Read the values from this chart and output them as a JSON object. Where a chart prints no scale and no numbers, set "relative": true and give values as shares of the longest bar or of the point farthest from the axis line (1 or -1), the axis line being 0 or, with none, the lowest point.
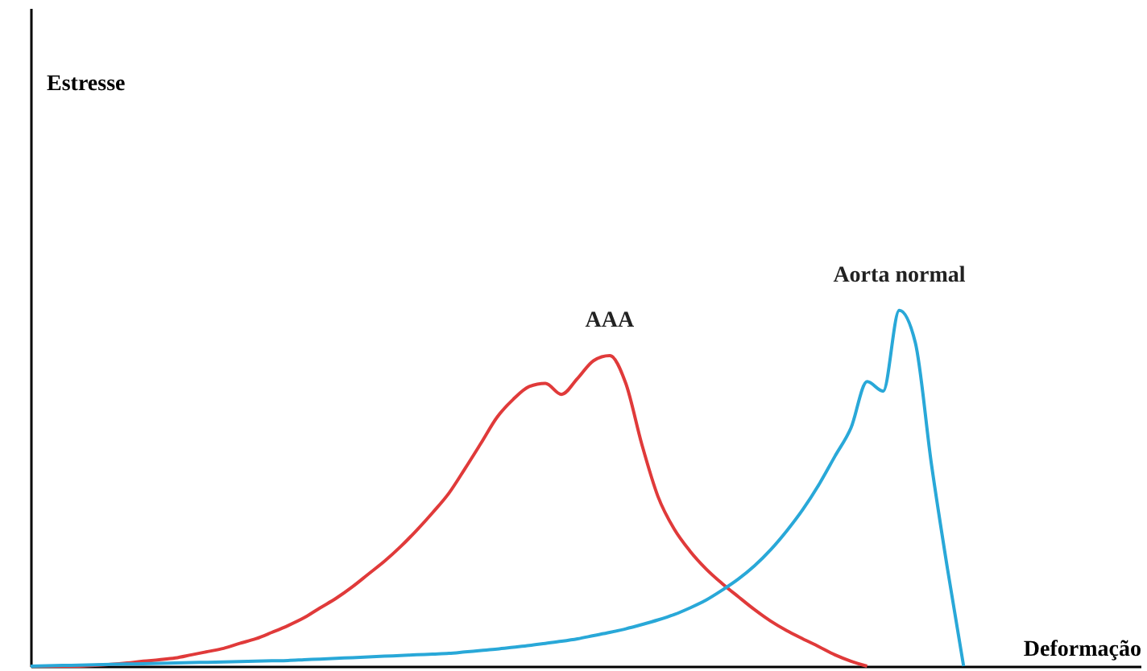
{
  "chart_data": {
    "type": "line",
    "xlabel": "Deformação",
    "annotations": [
      "Estresse"
    ],
    "relative": true,
    "tick_labels": false,
    "grid": false,
    "marker": "none",
    "categories": [
      null,
      null,
      null,
      null,
      null,
      null,
      null,
      null,
      null,
      null,
      null,
      null,
      null,
      null,
      null,
      null,
      null,
      null,
      null,
      null,
      null,
      null,
      null,
      null,
      null,
      null,
      null,
      null,
      null,
      null,
      null,
      null,
      null,
      null,
      null,
      null,
      null,
      null,
      null,
      null,
      null,
      null,
      null,
      null,
      null,
      null,
      null,
      null,
      null,
      null,
      null,
      null,
      null,
      null,
      null,
      null,
      null,
      null,
      null,
      null,
      null,
      null,
      null,
      null,
      null,
      null,
      null,
      null,
      null,
      null
    ],
    "series": [
      {
        "name": "AAA",
        "color": "#e03a3a",
        "values": [
          0,
          0,
          0,
          0,
          0.002,
          0.005,
          0.009,
          0.014,
          0.018,
          0.023,
          0.032,
          0.041,
          0.05,
          0.064,
          0.077,
          0.095,
          0.114,
          0.136,
          0.164,
          0.191,
          0.223,
          0.259,
          0.295,
          0.336,
          0.382,
          0.432,
          0.486,
          0.555,
          0.627,
          0.7,
          0.75,
          0.786,
          0.795,
          0.764,
          0.809,
          0.859,
          0.873,
          0.795,
          0.623,
          0.477,
          0.386,
          0.323,
          0.273,
          0.232,
          0.195,
          0.159,
          0.127,
          0.1,
          0.077,
          0.055,
          0.032,
          0.014,
          0,
          null,
          null,
          null,
          null,
          null,
          null,
          null,
          null,
          null,
          null,
          null,
          null,
          null,
          null,
          null,
          null,
          null
        ]
      },
      {
        "name": "Aorta normal",
        "color": "#29a8d8",
        "values": [
          0,
          0.001,
          0.002,
          0.003,
          0.004,
          0.005,
          0.006,
          0.007,
          0.008,
          0.009,
          0.01,
          0.011,
          0.012,
          0.013,
          0.014,
          0.015,
          0.016,
          0.018,
          0.02,
          0.022,
          0.024,
          0.026,
          0.028,
          0.03,
          0.032,
          0.034,
          0.036,
          0.04,
          0.044,
          0.048,
          0.053,
          0.058,
          0.064,
          0.07,
          0.077,
          0.086,
          0.095,
          0.105,
          0.117,
          0.13,
          0.145,
          0.164,
          0.186,
          0.214,
          0.245,
          0.282,
          0.327,
          0.38,
          0.44,
          0.51,
          0.59,
          0.67,
          0.8,
          0.773,
          1,
          0.909,
          0.568,
          0.273,
          0,
          null,
          null,
          null,
          null,
          null,
          null,
          null,
          null,
          null,
          null,
          null
        ]
      }
    ]
  }
}
